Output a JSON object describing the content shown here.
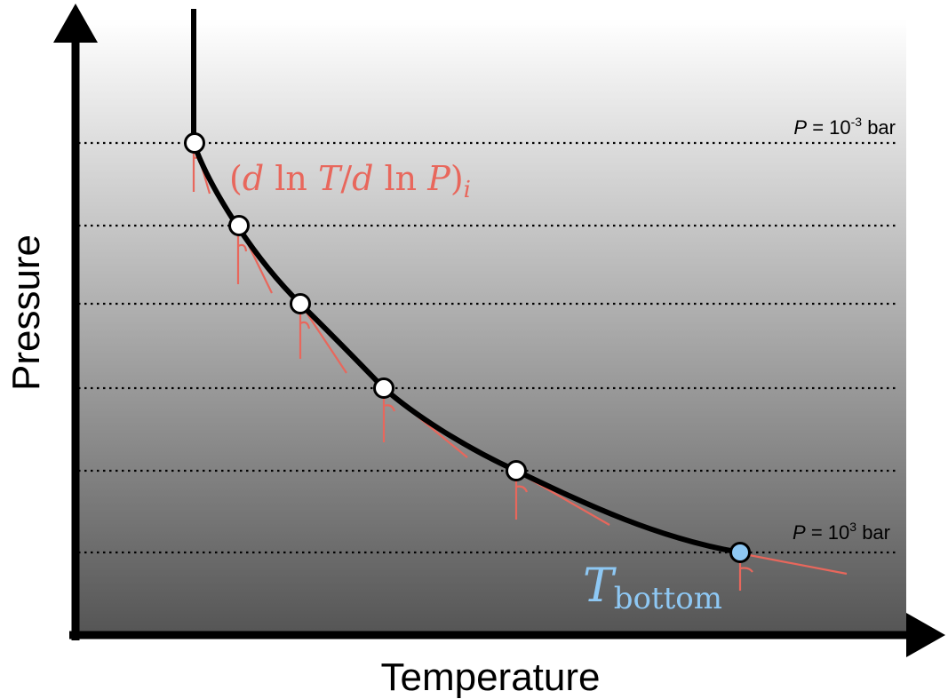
{
  "diagram": {
    "x_axis_label": "Temperature",
    "y_axis_label": "Pressure",
    "top_level": {
      "prefix": "P",
      "equals": " = 10",
      "exponent": "-3",
      "unit": " bar"
    },
    "bottom_level": {
      "prefix": "P",
      "equals": " = 10",
      "exponent": "3",
      "unit": " bar"
    },
    "gradient_label": {
      "open": "(",
      "d1": "d",
      "ln1": " ln ",
      "T": "T",
      "slash": "/",
      "d2": "d",
      "ln2": " ln ",
      "P": "P",
      "close": ")",
      "sub": "i"
    },
    "bottom_temperature_label": {
      "main": "T",
      "sub": "bottom"
    },
    "colors": {
      "curve": "#000000",
      "gradient": "#e8675c",
      "bottom_node": "#8ec8f4",
      "node": "#ffffff",
      "background_top": "#ffffff",
      "background_bottom": "#555555"
    },
    "node_count": 6
  }
}
